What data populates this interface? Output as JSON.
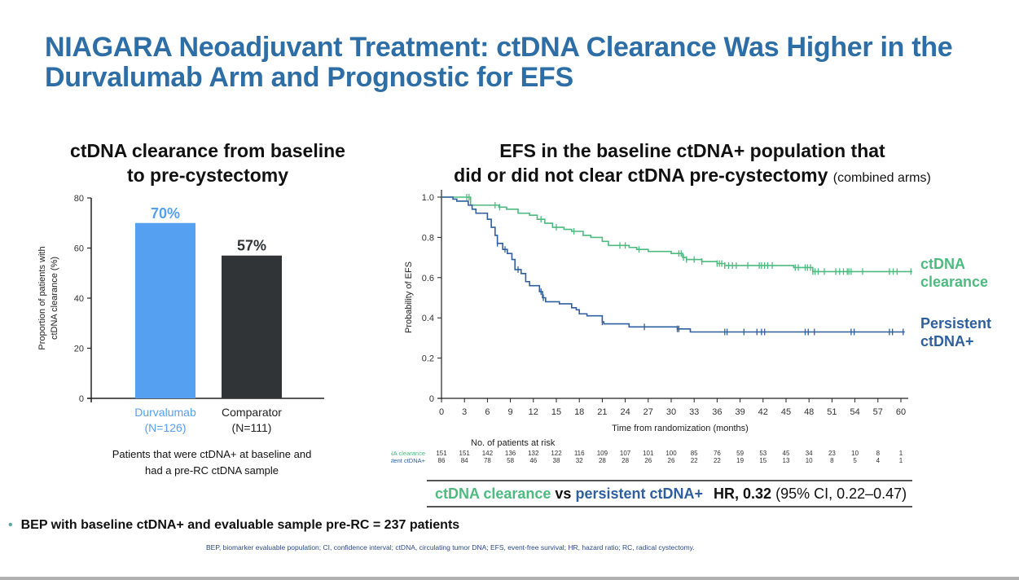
{
  "title_line1": "NIAGARA Neoadjuvant Treatment: ctDNA Clearance Was Higher in the",
  "title_line2": "Durvalumab Arm and Prognostic for EFS",
  "left_panel": {
    "title_line1": "ctDNA clearance from baseline",
    "title_line2": "to pre-cystectomy",
    "note_line1": "Patients that were ctDNA+ at baseline and",
    "note_line2": "had a pre-RC ctDNA sample"
  },
  "right_panel": {
    "title_line1": "EFS in the baseline ctDNA+ population that",
    "title_line2": "did or did not clear ctDNA pre-cystectomy",
    "title_suffix": "(combined arms)",
    "risk_header": "No. of patients at risk",
    "hr": {
      "group1": "ctDNA clearance",
      "vs": "vs",
      "group2": "persistent ctDNA+",
      "hr_label": "HR,",
      "hr_value": "0.32",
      "ci": "(95% CI, 0.22–0.47)"
    }
  },
  "bullet": "BEP with baseline ctDNA+ and evaluable sample pre-RC = 237 patients",
  "abbreviations": "BEP, biomarker evaluable population; CI, confidence interval; ctDNA, circulating tumor DNA; EFS, event-free survival; HR, hazard ratio; RC, radical cystectomy.",
  "colors": {
    "title": "#2e6ea6",
    "durvalumab": "#55a0f0",
    "comparator": "#303436",
    "clearance": "#4dbb7f",
    "persistent": "#2e5f9e"
  },
  "chart_data": [
    {
      "type": "bar",
      "title": "ctDNA clearance from baseline to pre-cystectomy",
      "ylabel": "Proportion of patients with ctDNA clearance (%)",
      "ylabel_line1": "Proportion of patients with",
      "ylabel_line2": "ctDNA clearance (%)",
      "ylim": [
        0,
        80
      ],
      "yticks": [
        0,
        20,
        40,
        60,
        80
      ],
      "categories": [
        {
          "name": "Durvalumab",
          "n": "(N=126)",
          "value": 70,
          "label": "70%",
          "color": "#55a0f0",
          "label_color": "#55a0f0"
        },
        {
          "name": "Comparator",
          "n": "(N=111)",
          "value": 57,
          "label": "57%",
          "color": "#303436",
          "label_color": "#303436"
        }
      ]
    },
    {
      "type": "line",
      "subtype": "kaplan-meier",
      "title": "EFS in the baseline ctDNA+ population that did or did not clear ctDNA pre-cystectomy (combined arms)",
      "xlabel": "Time from randomization (months)",
      "ylabel": "Probability of EFS",
      "xlim": [
        0,
        62
      ],
      "ylim": [
        0,
        1.0
      ],
      "xticks": [
        0,
        3,
        6,
        9,
        12,
        15,
        18,
        21,
        24,
        27,
        30,
        33,
        36,
        39,
        42,
        45,
        48,
        51,
        54,
        57,
        60
      ],
      "yticks": [
        0,
        0.2,
        0.4,
        0.6,
        0.8,
        1.0
      ],
      "ytick_labels": [
        "0",
        "0.2",
        "0.4",
        "0.6",
        "0.8",
        "1.0"
      ],
      "series": [
        {
          "name": "ctDNA clearance",
          "label_line1": "ctDNA",
          "label_line2": "clearance",
          "color": "#4dbb7f",
          "steps": [
            [
              0,
              1.0
            ],
            [
              3.8,
              0.96
            ],
            [
              7.5,
              0.95
            ],
            [
              8.5,
              0.94
            ],
            [
              10,
              0.92
            ],
            [
              11.5,
              0.91
            ],
            [
              12.5,
              0.89
            ],
            [
              13.5,
              0.87
            ],
            [
              14.5,
              0.85
            ],
            [
              16,
              0.84
            ],
            [
              17,
              0.83
            ],
            [
              18.5,
              0.81
            ],
            [
              19.5,
              0.8
            ],
            [
              21,
              0.78
            ],
            [
              21.8,
              0.76
            ],
            [
              24.5,
              0.75
            ],
            [
              25.5,
              0.74
            ],
            [
              27,
              0.73
            ],
            [
              30,
              0.72
            ],
            [
              31.5,
              0.7
            ],
            [
              32,
              0.69
            ],
            [
              34,
              0.68
            ],
            [
              36,
              0.67
            ],
            [
              37,
              0.66
            ],
            [
              46,
              0.65
            ],
            [
              48.5,
              0.63
            ],
            [
              61.5,
              0.63
            ]
          ],
          "censor": [
            3.3,
            3.6,
            7,
            7.6,
            13,
            15,
            17.3,
            23.3,
            24,
            25.8,
            31,
            31.3,
            31.6,
            32,
            33,
            34,
            36,
            36.3,
            36.6,
            37,
            37.5,
            38,
            38.5,
            40,
            41.5,
            41.8,
            42.2,
            42.6,
            43.2,
            46.2,
            46.6,
            47.5,
            47.8,
            48.2,
            48.5,
            48.8,
            49.2,
            50,
            51.5,
            52,
            52.5,
            53,
            53.2,
            53.5,
            55,
            58.5,
            59,
            59.5,
            61.3
          ],
          "at_risk": [
            151,
            151,
            142,
            136,
            132,
            122,
            116,
            109,
            107,
            101,
            100,
            85,
            76,
            59,
            53,
            45,
            34,
            23,
            10,
            8,
            1
          ]
        },
        {
          "name": "Persistent ctDNA+",
          "label_line1": "Persistent",
          "label_line2": "ctDNA+",
          "color": "#2e5f9e",
          "steps": [
            [
              0,
              1.0
            ],
            [
              1.5,
              0.99
            ],
            [
              2,
              0.98
            ],
            [
              3.5,
              0.96
            ],
            [
              4,
              0.94
            ],
            [
              4.5,
              0.92
            ],
            [
              6,
              0.89
            ],
            [
              6.5,
              0.85
            ],
            [
              7,
              0.81
            ],
            [
              7.3,
              0.77
            ],
            [
              8,
              0.74
            ],
            [
              8.6,
              0.72
            ],
            [
              9.2,
              0.69
            ],
            [
              9.6,
              0.64
            ],
            [
              10.4,
              0.62
            ],
            [
              11,
              0.58
            ],
            [
              11.5,
              0.56
            ],
            [
              12.8,
              0.53
            ],
            [
              13.2,
              0.5
            ],
            [
              13.6,
              0.48
            ],
            [
              15.4,
              0.47
            ],
            [
              17,
              0.45
            ],
            [
              17.6,
              0.44
            ],
            [
              18,
              0.42
            ],
            [
              19,
              0.41
            ],
            [
              21,
              0.38
            ],
            [
              21.2,
              0.37
            ],
            [
              24.5,
              0.355
            ],
            [
              30.8,
              0.345
            ],
            [
              32.5,
              0.33
            ],
            [
              60.5,
              0.33
            ]
          ],
          "censor": [
            7.3,
            8.3,
            10,
            13,
            13.3,
            21,
            26.5,
            30.8,
            31,
            37,
            37.3,
            39.5,
            41.2,
            41.8,
            42.2,
            47.5,
            47.9,
            48.7,
            53.5,
            53.9,
            58.5,
            58.9,
            60.3
          ],
          "at_risk": [
            86,
            84,
            78,
            58,
            46,
            38,
            32,
            28,
            28,
            26,
            26,
            22,
            22,
            19,
            15,
            13,
            10,
            8,
            5,
            4,
            1
          ]
        }
      ]
    }
  ]
}
